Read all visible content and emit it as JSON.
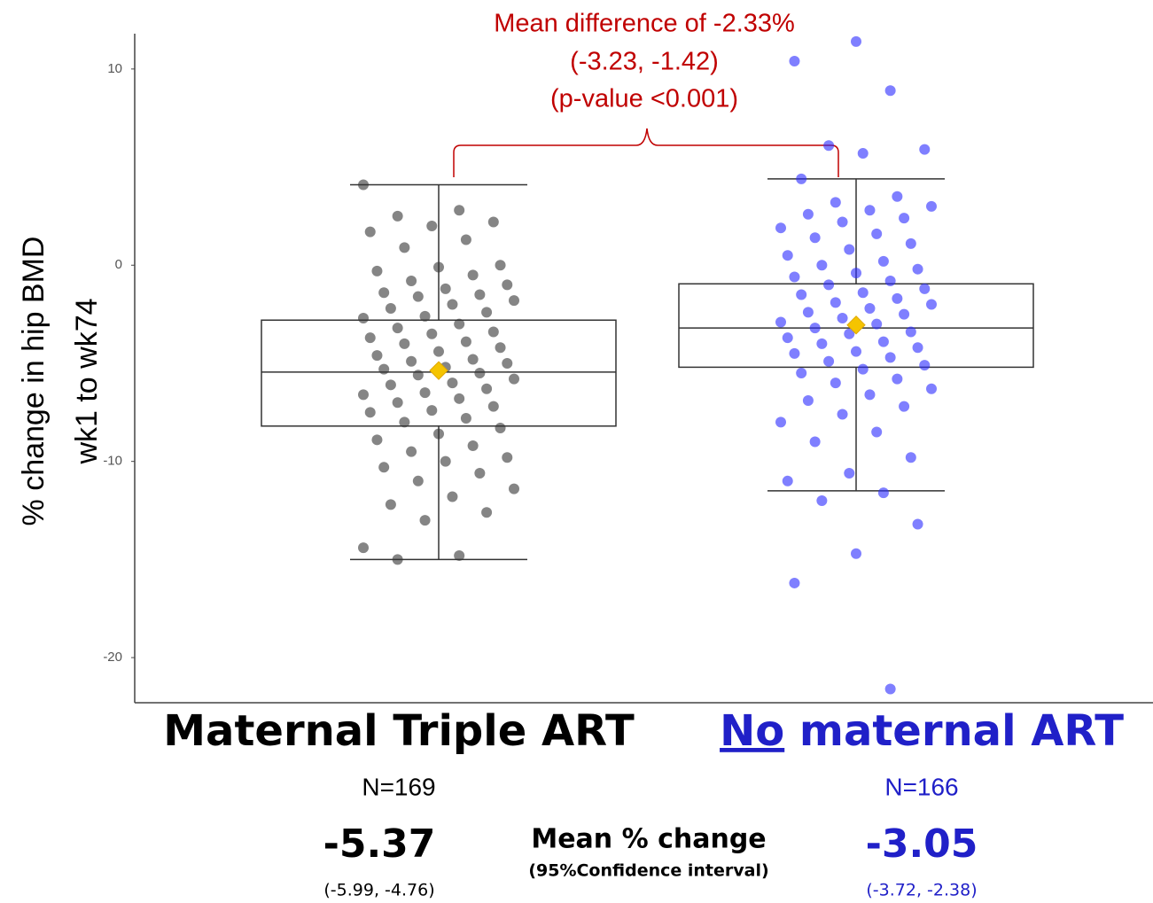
{
  "chart_data": {
    "type": "box",
    "ylabel": [
      "% change in hip BMD",
      "wk1 to wk74"
    ],
    "annotation": [
      "Mean difference of -2.33%",
      "(-3.23, -1.42)",
      "(p-value <0.001)"
    ],
    "summary_label": "Mean % change",
    "summary_sublabel": "(95%Confidence interval)",
    "ylim": [
      -22.3,
      11.8
    ],
    "yticks": [
      10,
      0,
      -10,
      -20
    ],
    "grid": false,
    "series": [
      {
        "name": "Maternal Triple ART",
        "color": "#333333",
        "label_color": "#000000",
        "n_label": "N=169",
        "whisker_low": -15.0,
        "q1": -8.2,
        "median": -5.45,
        "q3": -2.8,
        "whisker_high": 4.1,
        "mean": -5.37,
        "ci_label": "(-5.99, -4.76)",
        "values": [
          4.1,
          2.8,
          2.5,
          2.2,
          2.0,
          1.7,
          1.3,
          0.9,
          0.0,
          -0.1,
          -0.3,
          -0.5,
          -0.8,
          -1.0,
          -1.2,
          -1.4,
          -1.5,
          -1.6,
          -1.8,
          -2.0,
          -2.2,
          -2.4,
          -2.6,
          -2.7,
          -3.0,
          -3.2,
          -3.4,
          -3.5,
          -3.7,
          -3.9,
          -4.0,
          -4.2,
          -4.4,
          -4.6,
          -4.8,
          -4.9,
          -5.0,
          -5.2,
          -5.3,
          -5.5,
          -5.6,
          -5.8,
          -6.0,
          -6.1,
          -6.3,
          -6.5,
          -6.6,
          -6.8,
          -7.0,
          -7.2,
          -7.4,
          -7.5,
          -7.8,
          -8.0,
          -8.3,
          -8.6,
          -8.9,
          -9.2,
          -9.5,
          -9.8,
          -10.0,
          -10.3,
          -10.6,
          -11.0,
          -11.4,
          -11.8,
          -12.2,
          -12.6,
          -13.0,
          -14.4,
          -14.8,
          -15.0
        ]
      },
      {
        "name": "No maternal ART",
        "color": "#2a2aff",
        "label_color": "#2020c8",
        "n_label": "N=166",
        "whisker_low": -11.5,
        "q1": -5.2,
        "median": -3.2,
        "q3": -0.95,
        "whisker_high": 4.4,
        "mean": -3.05,
        "ci_label": "(-3.72, -2.38)",
        "values": [
          11.4,
          10.4,
          8.9,
          6.1,
          5.9,
          5.7,
          4.4,
          3.5,
          3.2,
          3.0,
          2.8,
          2.6,
          2.4,
          2.2,
          1.9,
          1.6,
          1.4,
          1.1,
          0.8,
          0.5,
          0.2,
          0.0,
          -0.2,
          -0.4,
          -0.6,
          -0.8,
          -1.0,
          -1.2,
          -1.4,
          -1.5,
          -1.7,
          -1.9,
          -2.0,
          -2.2,
          -2.4,
          -2.5,
          -2.7,
          -2.9,
          -3.0,
          -3.2,
          -3.4,
          -3.5,
          -3.7,
          -3.9,
          -4.0,
          -4.2,
          -4.4,
          -4.5,
          -4.7,
          -4.9,
          -5.1,
          -5.3,
          -5.5,
          -5.8,
          -6.0,
          -6.3,
          -6.6,
          -6.9,
          -7.2,
          -7.6,
          -8.0,
          -8.5,
          -9.0,
          -9.8,
          -10.6,
          -11.0,
          -11.6,
          -12.0,
          -13.2,
          -14.7,
          -16.2,
          -21.6
        ]
      }
    ]
  }
}
